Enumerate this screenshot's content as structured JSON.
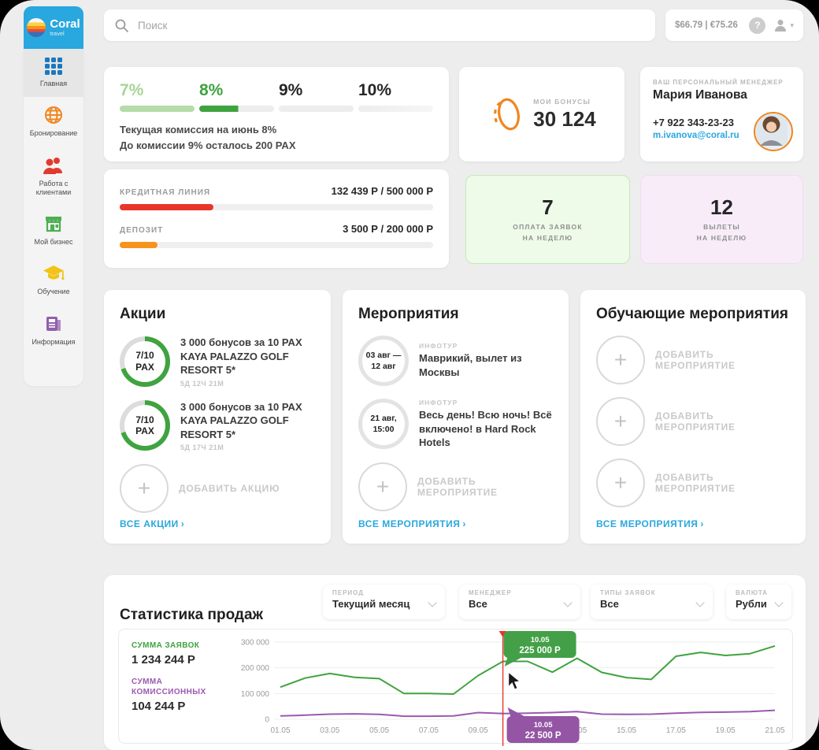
{
  "brand": {
    "name": "Coral",
    "sub": "travel"
  },
  "icons": {
    "plus": "+",
    "help": "?",
    "caret": "▾",
    "chevron": "›"
  },
  "topbar": {
    "search_placeholder": "Поиск",
    "rates": "$66.79 | €75.26"
  },
  "sidebar": {
    "items": [
      {
        "label": "Главная",
        "icon": "grid-icon",
        "active": true
      },
      {
        "label": "Бронирование",
        "icon": "globe-icon",
        "active": false
      },
      {
        "label": "Работа с клиентами",
        "icon": "clients-icon",
        "active": false
      },
      {
        "label": "Мой бизнес",
        "icon": "shop-icon",
        "active": false
      },
      {
        "label": "Обучение",
        "icon": "graduation-icon",
        "active": false
      },
      {
        "label": "Информация",
        "icon": "news-icon",
        "active": false
      }
    ]
  },
  "commission": {
    "levels": [
      {
        "pct": "7%"
      },
      {
        "pct": "8%"
      },
      {
        "pct": "9%"
      },
      {
        "pct": "10%"
      }
    ],
    "line1": "Текущая комиссия на июнь 8%",
    "line2": "До комиссии 9% осталось 200 PAX"
  },
  "bonuses": {
    "label": "МОИ БОНУСЫ",
    "value": "30 124"
  },
  "manager": {
    "label": "ВАШ ПЕРСОНАЛЬНЫЙ МЕНЕДЖЕР",
    "name": "Мария Иванова",
    "phone": "+7 922 343-23-23",
    "email": "m.ivanova@coral.ru"
  },
  "finance": {
    "credit": {
      "label": "КРЕДИТНАЯ ЛИНИЯ",
      "value": "132 439 Р / 500 000 Р",
      "pct": 30,
      "color": "#e8362c"
    },
    "deposit": {
      "label": "ДЕПОЗИТ",
      "value": "3 500 Р / 200 000 Р",
      "pct": 12,
      "color": "#f6921e"
    }
  },
  "week_stats": [
    {
      "value": "7",
      "label1": "ОПЛАТА ЗАЯВОК",
      "label2": "НА НЕДЕЛЮ"
    },
    {
      "value": "12",
      "label1": "ВЫЛЕТЫ",
      "label2": "НА НЕДЕЛЮ"
    }
  ],
  "promos": {
    "title": "Акции",
    "items": [
      {
        "ring": "7/10",
        "ring_sub": "PAX",
        "text": "3 000 бонусов за 10 PAX KAYA PALAZZO GOLF RESORT  5*",
        "timer": "5Д 12Ч 21М"
      },
      {
        "ring": "7/10",
        "ring_sub": "PAX",
        "text": "3 000 бонусов за 10 PAX KAYA PALAZZO GOLF RESORT  5*",
        "timer": "5Д 17Ч 21М"
      }
    ],
    "add_label": "ДОБАВИТЬ АКЦИЮ",
    "link": "ВСЕ АКЦИИ"
  },
  "events": {
    "title": "Мероприятия",
    "items": [
      {
        "date1": "03 авг —",
        "date2": "12 авг",
        "tag": "ИНФОТУР",
        "text": "Маврикий, вылет из Москвы"
      },
      {
        "date1": "21 авг,",
        "date2": "15:00",
        "tag": "ИНФОТУР",
        "text": "Весь день! Всю ночь! Всё включено! в Hard Rock Hotels"
      }
    ],
    "add_label": "ДОБАВИТЬ МЕРОПРИЯТИЕ",
    "link": "ВСЕ МЕРОПРИЯТИЯ"
  },
  "trainings": {
    "title": "Обучающие мероприятия",
    "add_label": "ДОБАВИТЬ МЕРОПРИЯТИЕ",
    "link": "ВСЕ МЕРОПРИЯТИЯ"
  },
  "stats": {
    "title": "Статистика продаж",
    "filters": [
      {
        "label": "ПЕРИОД",
        "value": "Текущий месяц"
      },
      {
        "label": "МЕНЕДЖЕР",
        "value": "Все"
      },
      {
        "label": "ТИПЫ ЗАЯВОК",
        "value": "Все"
      },
      {
        "label": "ВАЛЮТА",
        "value": "Рубли"
      }
    ],
    "legend": [
      {
        "label": "СУММА ЗАЯВОК",
        "value": "1 234 244 Р",
        "color": "#3fa33f"
      },
      {
        "label": "СУММА КОМИССИОННЫХ",
        "value": "104 244 Р",
        "color": "#9b59b0"
      }
    ]
  },
  "chart_data": {
    "type": "line",
    "x": [
      "01.05",
      "02.05",
      "03.05",
      "04.05",
      "05.05",
      "06.05",
      "07.05",
      "08.05",
      "09.05",
      "10.05",
      "11.05",
      "12.05",
      "13.05",
      "14.05",
      "15.05",
      "16.05",
      "17.05",
      "18.05",
      "19.05",
      "20.05",
      "21.05"
    ],
    "series": [
      {
        "name": "Сумма заявок",
        "color": "#3fa33f",
        "values": [
          125000,
          160000,
          178000,
          163000,
          158000,
          100000,
          100000,
          98000,
          170000,
          225000,
          225000,
          183000,
          237000,
          182000,
          162000,
          155000,
          245000,
          260000,
          248000,
          255000,
          285000
        ]
      },
      {
        "name": "Сумма комиссионных",
        "color": "#9b59b0",
        "values": [
          13000,
          16000,
          20000,
          21000,
          19000,
          12000,
          12000,
          13000,
          26000,
          22500,
          24000,
          26000,
          30000,
          20000,
          19000,
          20000,
          24000,
          27000,
          28000,
          30000,
          35000
        ]
      }
    ],
    "title": "Статистика продаж",
    "xlabel": "",
    "ylabel": "",
    "ylim": [
      0,
      300000
    ],
    "yticks": [
      0,
      100000,
      200000,
      300000
    ],
    "ytick_labels": [
      "0",
      "100 000",
      "200 000",
      "300 000"
    ],
    "x_ticks_shown": [
      "01.05",
      "03.05",
      "05.05",
      "07.05",
      "09.05",
      "13.05",
      "15.05",
      "17.05",
      "19.05",
      "21.05"
    ],
    "grid": true,
    "legend_position": "left",
    "cursor_day": "10.05",
    "tooltips": [
      {
        "date": "10.05",
        "value": "225 000 Р",
        "series": "Сумма заявок",
        "color": "#43a047"
      },
      {
        "date": "10.05",
        "value": "22 500 Р",
        "series": "Сумма комиссионных",
        "color": "#9455a4"
      }
    ]
  }
}
